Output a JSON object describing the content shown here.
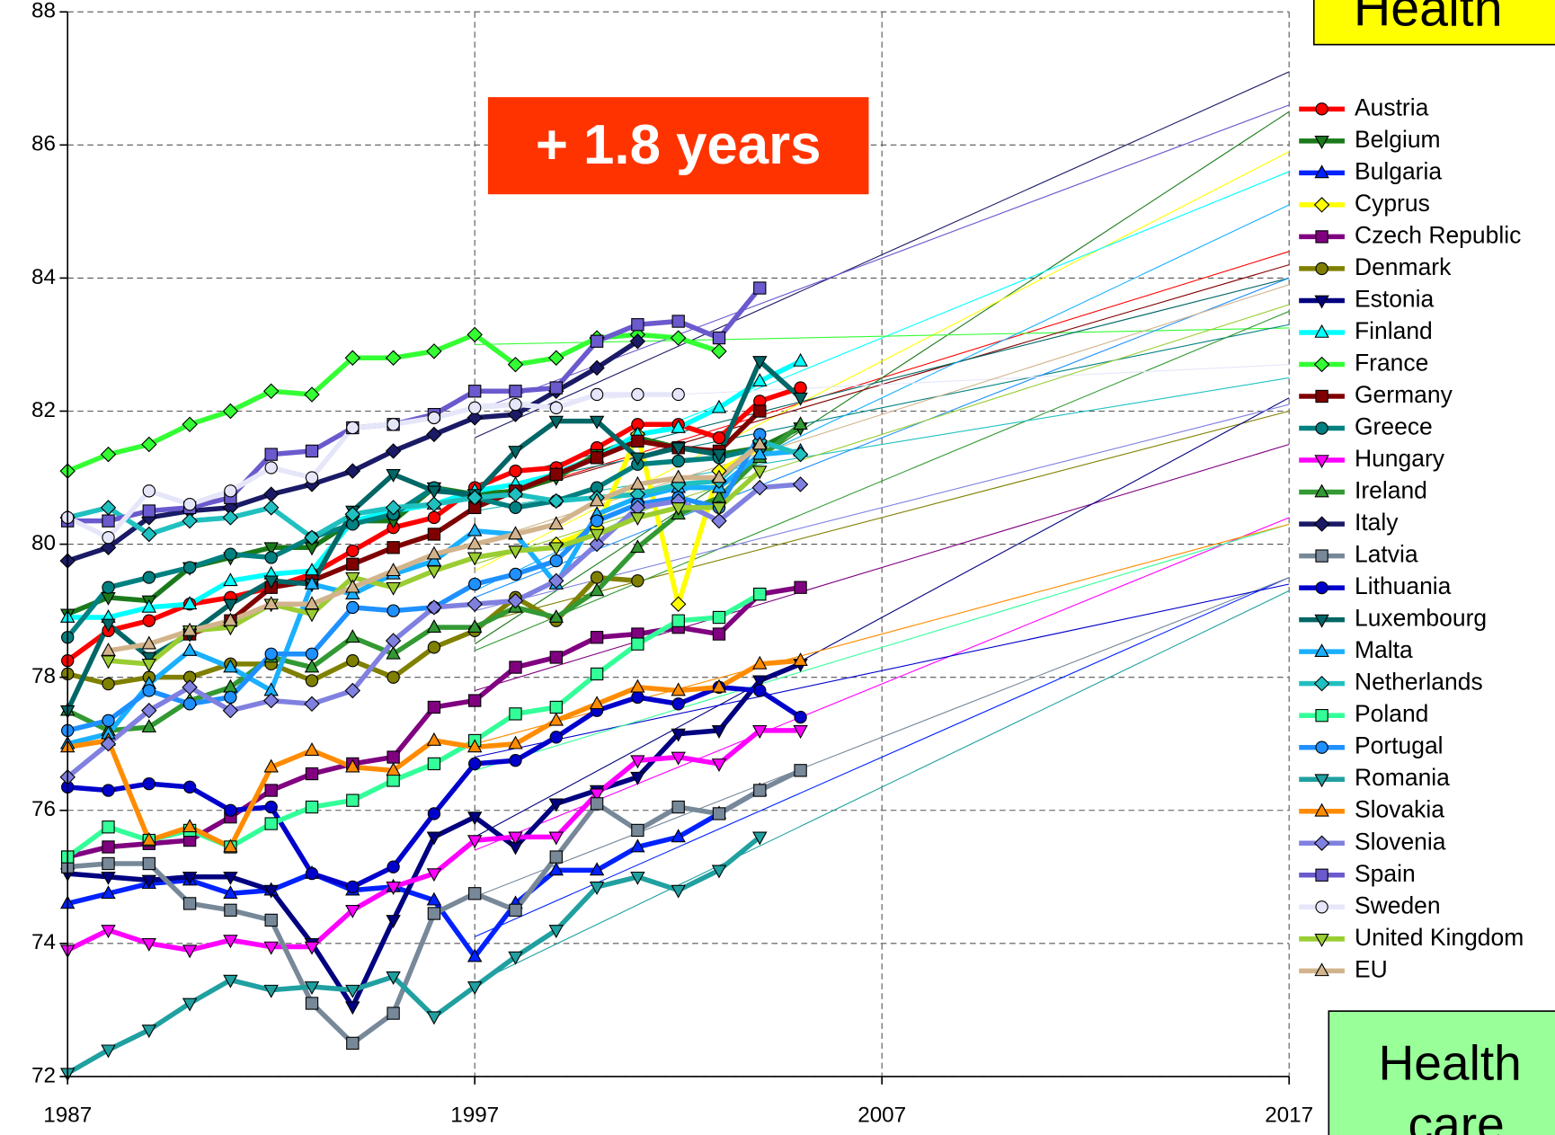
{
  "chart_data": {
    "type": "line",
    "x": [
      1987,
      1988,
      1989,
      1990,
      1991,
      1992,
      1993,
      1994,
      1995,
      1996,
      1997,
      1998,
      1999,
      2000,
      2001,
      2002,
      2003,
      2004,
      2005
    ],
    "xlim": [
      1987,
      2017
    ],
    "xticks": [
      1987,
      1997,
      2007,
      2017
    ],
    "ylim": [
      72,
      88
    ],
    "yticks": [
      72,
      74,
      76,
      78,
      80,
      82,
      84,
      86,
      88
    ],
    "grid": true,
    "legend": "right",
    "markers": [
      "circle",
      "triangle-down",
      "triangle-up",
      "diamond",
      "square"
    ],
    "trend_x": [
      1997,
      2017
    ],
    "annotations": {
      "gain": "+ 1.8 years",
      "top_box": "Health",
      "bottom_box": [
        "Health",
        "care"
      ]
    },
    "series": [
      {
        "name": "Austria",
        "color": "#ff0000",
        "values": [
          78.25,
          78.7,
          78.85,
          79.1,
          79.2,
          79.35,
          79.55,
          79.9,
          80.25,
          80.4,
          80.85,
          81.1,
          81.15,
          81.45,
          81.8,
          81.8,
          81.6,
          82.15,
          82.35
        ],
        "trend": [
          80.6,
          84.4
        ]
      },
      {
        "name": "Belgium",
        "color": "#1a7a1a",
        "values": [
          78.95,
          79.2,
          79.15,
          79.65,
          79.8,
          79.95,
          79.95,
          80.35,
          80.35,
          80.85,
          80.75,
          80.8,
          81.0,
          81.35,
          81.6,
          81.45,
          81.35,
          81.45,
          81.75
        ],
        "trend": [
          78.5,
          86.5
        ]
      },
      {
        "name": "Bulgaria",
        "color": "#0022ff",
        "values": [
          74.6,
          74.75,
          74.9,
          74.95,
          74.75,
          74.8,
          75.05,
          74.8,
          74.85,
          74.65,
          73.8,
          74.6,
          75.1,
          75.1,
          75.45,
          75.6,
          75.95,
          76.3,
          null
        ],
        "trend": [
          74.1,
          79.5
        ]
      },
      {
        "name": "Cyprus",
        "color": "#ffff00",
        "values": [
          null,
          null,
          null,
          null,
          null,
          null,
          null,
          null,
          null,
          null,
          null,
          null,
          80.0,
          80.25,
          81.65,
          79.1,
          81.1,
          81.45,
          null
        ],
        "trend": [
          79.6,
          85.9
        ]
      },
      {
        "name": "Czech Republic",
        "color": "#800080",
        "values": [
          75.3,
          75.45,
          75.5,
          75.55,
          75.9,
          76.3,
          76.55,
          76.7,
          76.8,
          77.55,
          77.65,
          78.15,
          78.3,
          78.6,
          78.65,
          78.75,
          78.65,
          79.25,
          79.35
        ],
        "trend": [
          77.8,
          81.5
        ]
      },
      {
        "name": "Denmark",
        "color": "#808000",
        "values": [
          78.05,
          77.9,
          78.0,
          78.0,
          78.2,
          78.2,
          77.95,
          78.25,
          78.0,
          78.45,
          78.7,
          79.2,
          78.85,
          79.5,
          79.45,
          null,
          null,
          null,
          null
        ],
        "trend": [
          78.8,
          82.0
        ]
      },
      {
        "name": "Estonia",
        "color": "#000080",
        "values": [
          75.05,
          75.0,
          74.95,
          75.0,
          75.0,
          74.8,
          74.0,
          73.05,
          74.35,
          75.6,
          75.9,
          75.45,
          76.1,
          76.3,
          76.5,
          77.15,
          77.2,
          77.95,
          78.2
        ],
        "trend": [
          75.6,
          82.2
        ]
      },
      {
        "name": "Finland",
        "color": "#00ffff",
        "values": [
          78.9,
          78.9,
          79.05,
          79.1,
          79.45,
          79.55,
          79.6,
          80.35,
          80.5,
          80.6,
          80.8,
          80.9,
          81.05,
          81.3,
          81.65,
          81.75,
          82.05,
          82.45,
          82.75
        ],
        "trend": [
          80.6,
          85.6
        ]
      },
      {
        "name": "France",
        "color": "#33ff33",
        "values": [
          81.1,
          81.35,
          81.5,
          81.8,
          82.0,
          82.3,
          82.25,
          82.8,
          82.8,
          82.9,
          83.15,
          82.7,
          82.8,
          83.1,
          83.15,
          83.1,
          82.9,
          null,
          null
        ],
        "trend": [
          83.0,
          83.25
        ]
      },
      {
        "name": "Germany",
        "color": "#800000",
        "values": [
          null,
          null,
          null,
          78.65,
          78.85,
          79.35,
          79.45,
          79.7,
          79.95,
          80.15,
          80.55,
          80.8,
          81.05,
          81.3,
          81.55,
          81.45,
          81.4,
          82.0,
          null
        ],
        "trend": [
          80.6,
          84.2
        ]
      },
      {
        "name": "Greece",
        "color": "#008080",
        "values": [
          78.6,
          79.35,
          79.5,
          79.65,
          79.85,
          79.8,
          80.1,
          80.3,
          80.45,
          80.85,
          80.7,
          80.55,
          80.65,
          80.85,
          81.2,
          81.25,
          81.3,
          81.45,
          null
        ],
        "trend": [
          80.8,
          83.3
        ]
      },
      {
        "name": "Hungary",
        "color": "#ff00ff",
        "values": [
          73.9,
          74.2,
          74.0,
          73.9,
          74.05,
          73.95,
          73.95,
          74.5,
          74.85,
          75.05,
          75.55,
          75.6,
          75.6,
          76.25,
          76.75,
          76.8,
          76.7,
          77.2,
          77.2
        ],
        "trend": [
          75.4,
          80.4
        ]
      },
      {
        "name": "Ireland",
        "color": "#339933",
        "values": [
          77.5,
          77.2,
          77.25,
          77.65,
          77.85,
          78.3,
          78.15,
          78.6,
          78.35,
          78.75,
          78.75,
          79.05,
          78.9,
          79.3,
          79.95,
          80.45,
          80.7,
          81.3,
          81.8
        ],
        "trend": [
          78.4,
          83.5
        ]
      },
      {
        "name": "Italy",
        "color": "#1a1a66",
        "values": [
          79.75,
          79.95,
          80.4,
          80.5,
          80.55,
          80.75,
          80.9,
          81.1,
          81.4,
          81.65,
          81.9,
          81.95,
          82.3,
          82.65,
          83.05,
          null,
          null,
          null,
          null
        ],
        "trend": [
          81.6,
          87.1
        ]
      },
      {
        "name": "Latvia",
        "color": "#778899",
        "values": [
          75.15,
          75.2,
          75.2,
          74.6,
          74.5,
          74.35,
          73.1,
          72.5,
          72.95,
          74.45,
          74.75,
          74.5,
          75.3,
          76.1,
          75.7,
          76.05,
          75.95,
          76.3,
          76.6
        ],
        "trend": [
          74.7,
          79.5
        ]
      },
      {
        "name": "Lithuania",
        "color": "#0000cc",
        "values": [
          76.35,
          76.3,
          76.4,
          76.35,
          76.0,
          76.05,
          75.05,
          74.85,
          75.15,
          75.95,
          76.7,
          76.75,
          77.1,
          77.5,
          77.7,
          77.6,
          77.85,
          77.8,
          77.4
        ],
        "trend": [
          76.8,
          79.4
        ]
      },
      {
        "name": "Luxembourg",
        "color": "#006666",
        "values": [
          77.5,
          78.8,
          78.3,
          78.65,
          79.1,
          79.45,
          79.4,
          80.5,
          81.05,
          80.8,
          80.75,
          81.4,
          81.85,
          81.85,
          81.3,
          81.45,
          81.35,
          82.75,
          82.2
        ],
        "trend": [
          80.9,
          84.0
        ]
      },
      {
        "name": "Malta",
        "color": "#1ab0ff",
        "values": [
          77.0,
          77.15,
          77.9,
          78.4,
          78.15,
          77.8,
          79.4,
          79.25,
          79.55,
          79.75,
          80.2,
          80.15,
          79.4,
          80.45,
          80.7,
          80.85,
          80.85,
          81.35,
          81.4
        ],
        "trend": [
          79.3,
          85.1
        ]
      },
      {
        "name": "Netherlands",
        "color": "#20c0c0",
        "values": [
          80.4,
          80.55,
          80.15,
          80.35,
          80.4,
          80.55,
          80.1,
          80.45,
          80.55,
          80.6,
          80.7,
          80.75,
          80.65,
          80.7,
          80.75,
          80.9,
          80.95,
          81.55,
          81.35
        ],
        "trend": [
          80.5,
          82.5
        ]
      },
      {
        "name": "Poland",
        "color": "#33ff99",
        "values": [
          75.3,
          75.75,
          75.55,
          75.7,
          75.45,
          75.8,
          76.05,
          76.15,
          76.45,
          76.7,
          77.05,
          77.45,
          77.55,
          78.05,
          78.5,
          78.85,
          78.9,
          79.25,
          null
        ],
        "trend": [
          76.6,
          80.3
        ]
      },
      {
        "name": "Portugal",
        "color": "#1e90ff",
        "values": [
          77.2,
          77.35,
          77.8,
          77.6,
          77.7,
          78.35,
          78.35,
          79.05,
          79.0,
          79.05,
          79.4,
          79.55,
          79.75,
          80.35,
          80.6,
          80.7,
          80.55,
          81.65,
          null
        ],
        "trend": [
          79.2,
          84.0
        ]
      },
      {
        "name": "Romania",
        "color": "#20a0a0",
        "values": [
          72.05,
          72.4,
          72.7,
          73.1,
          73.45,
          73.3,
          73.35,
          73.3,
          73.5,
          72.9,
          73.35,
          73.8,
          74.2,
          74.85,
          75.0,
          74.8,
          75.1,
          75.6,
          null
        ],
        "trend": [
          73.4,
          79.3
        ]
      },
      {
        "name": "Slovakia",
        "color": "#ff8c00",
        "values": [
          76.95,
          77.05,
          75.55,
          75.75,
          75.45,
          76.65,
          76.9,
          76.65,
          76.6,
          77.05,
          76.95,
          77.0,
          77.35,
          77.6,
          77.85,
          77.8,
          77.85,
          78.2,
          78.25
        ],
        "trend": [
          77.0,
          80.3
        ]
      },
      {
        "name": "Slovenia",
        "color": "#8080e0",
        "values": [
          76.5,
          77.0,
          77.5,
          77.85,
          77.5,
          77.65,
          77.6,
          77.8,
          78.55,
          79.05,
          79.1,
          79.15,
          79.45,
          80.0,
          80.55,
          80.65,
          80.35,
          80.85,
          80.9
        ],
        "trend": [
          79.0,
          82.1
        ]
      },
      {
        "name": "Spain",
        "color": "#6a5acd",
        "values": [
          80.35,
          80.35,
          80.5,
          80.55,
          80.7,
          81.35,
          81.4,
          81.75,
          81.8,
          81.95,
          82.3,
          82.3,
          82.35,
          83.05,
          83.3,
          83.35,
          83.1,
          83.85,
          null
        ],
        "trend": [
          82.0,
          86.6
        ]
      },
      {
        "name": "Sweden",
        "color": "#e6e6fa",
        "values": [
          80.4,
          80.1,
          80.8,
          80.6,
          80.8,
          81.15,
          81.0,
          81.75,
          81.8,
          81.9,
          82.05,
          82.1,
          82.05,
          82.25,
          82.25,
          82.25,
          null,
          null,
          null
        ],
        "trend": [
          82.1,
          82.7
        ]
      },
      {
        "name": "United Kingdom",
        "color": "#9acd32",
        "values": [
          null,
          78.25,
          78.2,
          78.7,
          78.75,
          79.1,
          78.95,
          79.5,
          79.35,
          79.6,
          79.8,
          79.9,
          79.95,
          80.15,
          80.4,
          80.55,
          80.55,
          81.1,
          null
        ],
        "trend": [
          79.7,
          83.6
        ]
      },
      {
        "name": "EU",
        "color": "#d2b48c",
        "values": [
          null,
          78.4,
          78.5,
          78.7,
          78.85,
          79.1,
          79.1,
          79.35,
          79.6,
          79.85,
          80.0,
          80.15,
          80.3,
          80.65,
          80.9,
          81.0,
          81.0,
          81.5,
          null
        ],
        "trend": [
          80.0,
          83.9
        ]
      }
    ]
  }
}
